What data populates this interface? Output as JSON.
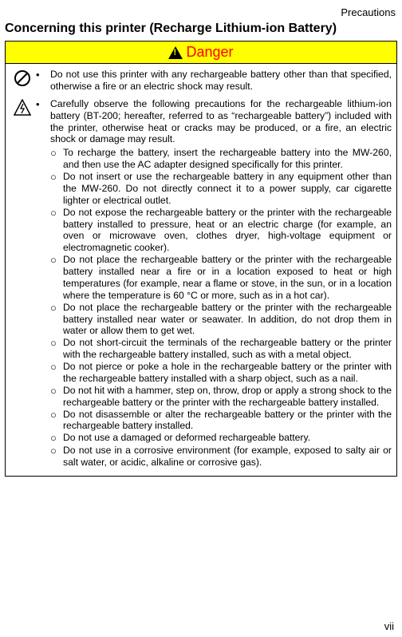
{
  "header": {
    "label": "Precautions"
  },
  "title": "Concerning this printer (Recharge Lithium-ion Battery)",
  "danger": {
    "label": "Danger",
    "bg": "#ffff00",
    "color": "#ff0000"
  },
  "bullets": [
    {
      "text": "Do not use this printer with any rechargeable battery other than that specified, otherwise a fire or an electric shock may result."
    },
    {
      "text": "Carefully observe the following precautions for the rechargeable lithium-ion battery (BT-200; hereafter, referred to as “rechargeable battery”) included with the printer, otherwise heat or cracks may be produced, or a fire, an electric shock or damage may result.",
      "subs": [
        "To recharge the battery, insert the rechargeable battery into the MW-260, and then use the AC adapter designed specifically for this printer.",
        "Do not insert or use the rechargeable battery in any equipment other than the MW-260. Do not directly connect it to a power supply, car cigarette lighter or electrical outlet.",
        "Do not expose the rechargeable battery or the printer with the rechargeable battery installed to pressure, heat or an electric charge (for example, an oven or microwave oven, clothes dryer, high-voltage equipment or electromagnetic cooker).",
        "Do not place the rechargeable battery or the printer with the rechargeable battery installed near a fire or in a location exposed to heat or high temperatures (for example, near a flame or stove, in the sun, or in a location where the temperature is 60 °C or more, such as in a hot car).",
        "Do not place the rechargeable battery or the printer with the rechargeable battery installed near water or seawater. In addition, do not drop them in water or allow them to get wet.",
        "Do not short-circuit the terminals of the rechargeable battery or the printer with the rechargeable battery installed, such as with a metal object.",
        "Do not pierce or poke a hole in the rechargeable battery or the printer with the rechargeable battery installed with a sharp object, such as a nail.",
        "Do not hit with a hammer, step on, throw, drop or apply a strong shock to the rechargeable battery or the printer with the rechargeable battery installed.",
        "Do not disassemble or alter the rechargeable battery or the printer with the rechargeable battery installed.",
        "Do not use a damaged or deformed rechargeable battery.",
        "Do not use in a corrosive environment (for example, exposed to salty air or salt water, or acidic, alkaline or corrosive gas)."
      ]
    }
  ],
  "page": "vii"
}
